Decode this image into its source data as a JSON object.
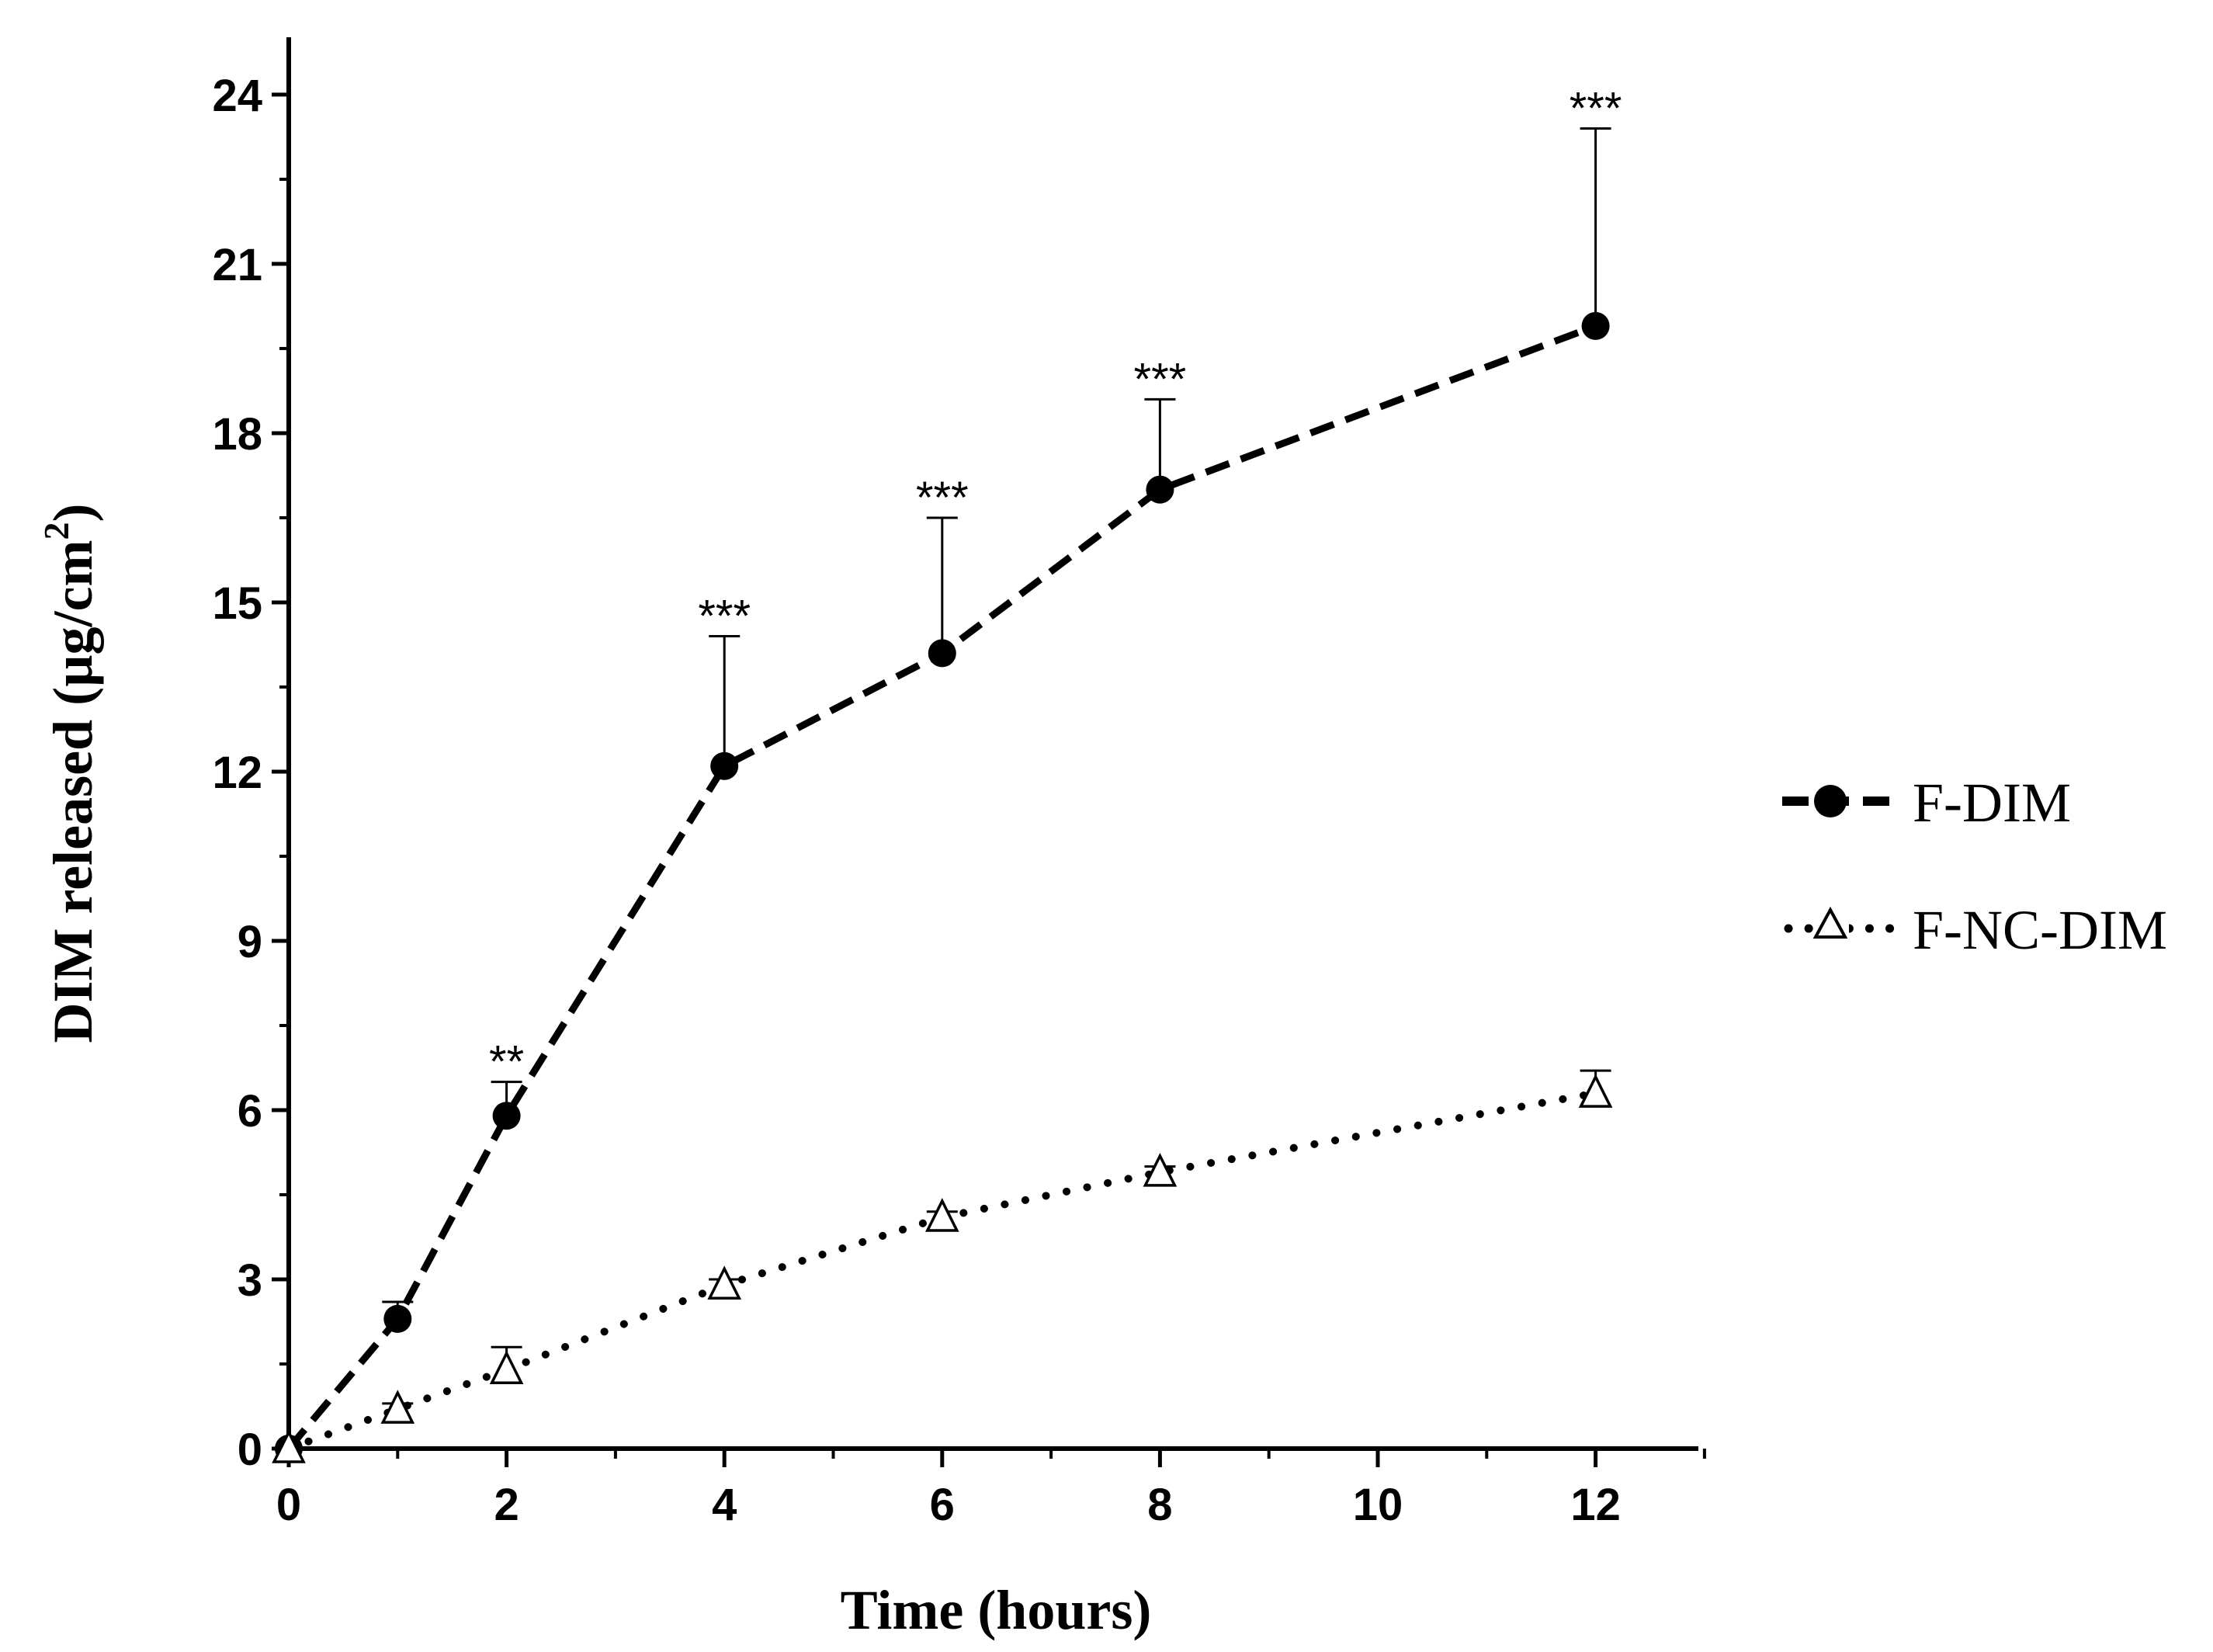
{
  "chart_data": {
    "type": "line",
    "title": "",
    "xlabel": "Time (hours)",
    "ylabel": "DIM released (µg/cm²)",
    "ylabel_parts": {
      "main": "DIM released (µg/cm",
      "sup": "2",
      "close": ")"
    },
    "xlim": [
      0,
      13
    ],
    "ylim": [
      0,
      25
    ],
    "x_ticks": [
      0,
      2,
      4,
      6,
      8,
      10,
      12
    ],
    "x_ticks_labels": [
      "0",
      "2",
      "4",
      "6",
      "8",
      "10",
      "12"
    ],
    "y_ticks": [
      0,
      3,
      6,
      9,
      12,
      15,
      18,
      21,
      24
    ],
    "y_ticks_labels": [
      "0",
      "3",
      "6",
      "9",
      "12",
      "15",
      "18",
      "21",
      "24"
    ],
    "legend_position": "right",
    "series": [
      {
        "name": "F-DIM",
        "marker": "filled-circle",
        "line": "dashed",
        "x": [
          0,
          1,
          2,
          4,
          6,
          8,
          12
        ],
        "y": [
          0,
          2.3,
          5.9,
          12.1,
          14.1,
          17.0,
          19.9
        ],
        "err": [
          0,
          0.3,
          0.6,
          2.3,
          2.4,
          1.6,
          3.5
        ],
        "significance": [
          "",
          "",
          "**",
          "***",
          "***",
          "***",
          "***"
        ]
      },
      {
        "name": "F-NC-DIM",
        "marker": "open-triangle",
        "line": "dotted",
        "x": [
          0,
          1,
          2,
          4,
          6,
          8,
          12
        ],
        "y": [
          0,
          0.7,
          1.4,
          2.9,
          4.1,
          4.9,
          6.3
        ],
        "err": [
          0,
          0.1,
          0.4,
          0.1,
          0.1,
          0.1,
          0.4
        ],
        "significance": [
          "",
          "",
          "",
          "",
          "",
          "",
          ""
        ]
      }
    ]
  }
}
